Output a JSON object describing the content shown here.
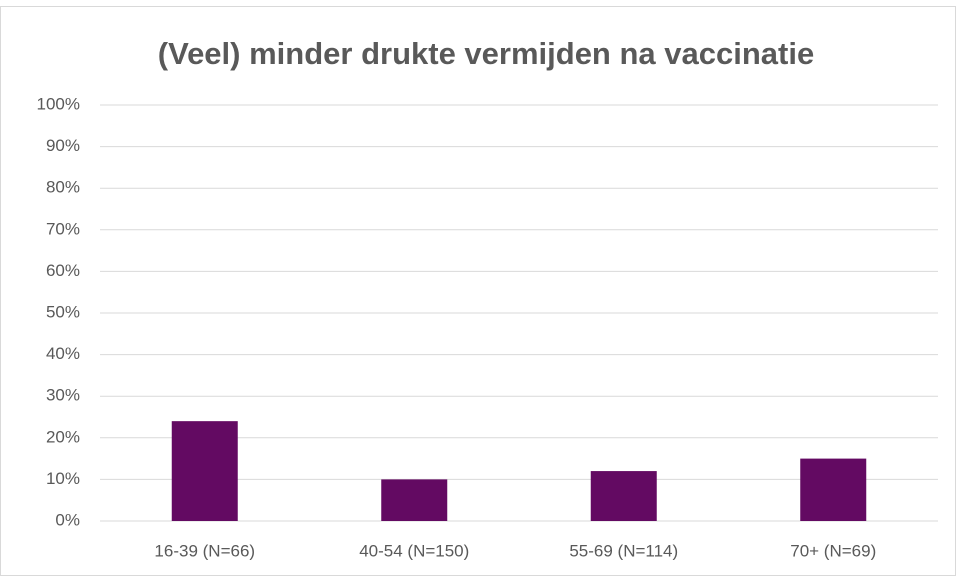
{
  "chart_data": {
    "type": "bar",
    "title": "(Veel) minder drukte vermijden na vaccinatie",
    "categories": [
      "16-39 (N=66)",
      "40-54 (N=150)",
      "55-69 (N=114)",
      "70+ (N=69)"
    ],
    "values": [
      24,
      10,
      12,
      15
    ],
    "color": "#630a62",
    "ylim": [
      0,
      100
    ],
    "yticks": [
      {
        "value": 0,
        "label": "0%"
      },
      {
        "value": 10,
        "label": "10%"
      },
      {
        "value": 20,
        "label": "20%"
      },
      {
        "value": 30,
        "label": "30%"
      },
      {
        "value": 40,
        "label": "40%"
      },
      {
        "value": 50,
        "label": "50%"
      },
      {
        "value": 60,
        "label": "60%"
      },
      {
        "value": 70,
        "label": "70%"
      },
      {
        "value": 80,
        "label": "80%"
      },
      {
        "value": 90,
        "label": "90%"
      },
      {
        "value": 100,
        "label": "100%"
      }
    ],
    "grid": true
  }
}
